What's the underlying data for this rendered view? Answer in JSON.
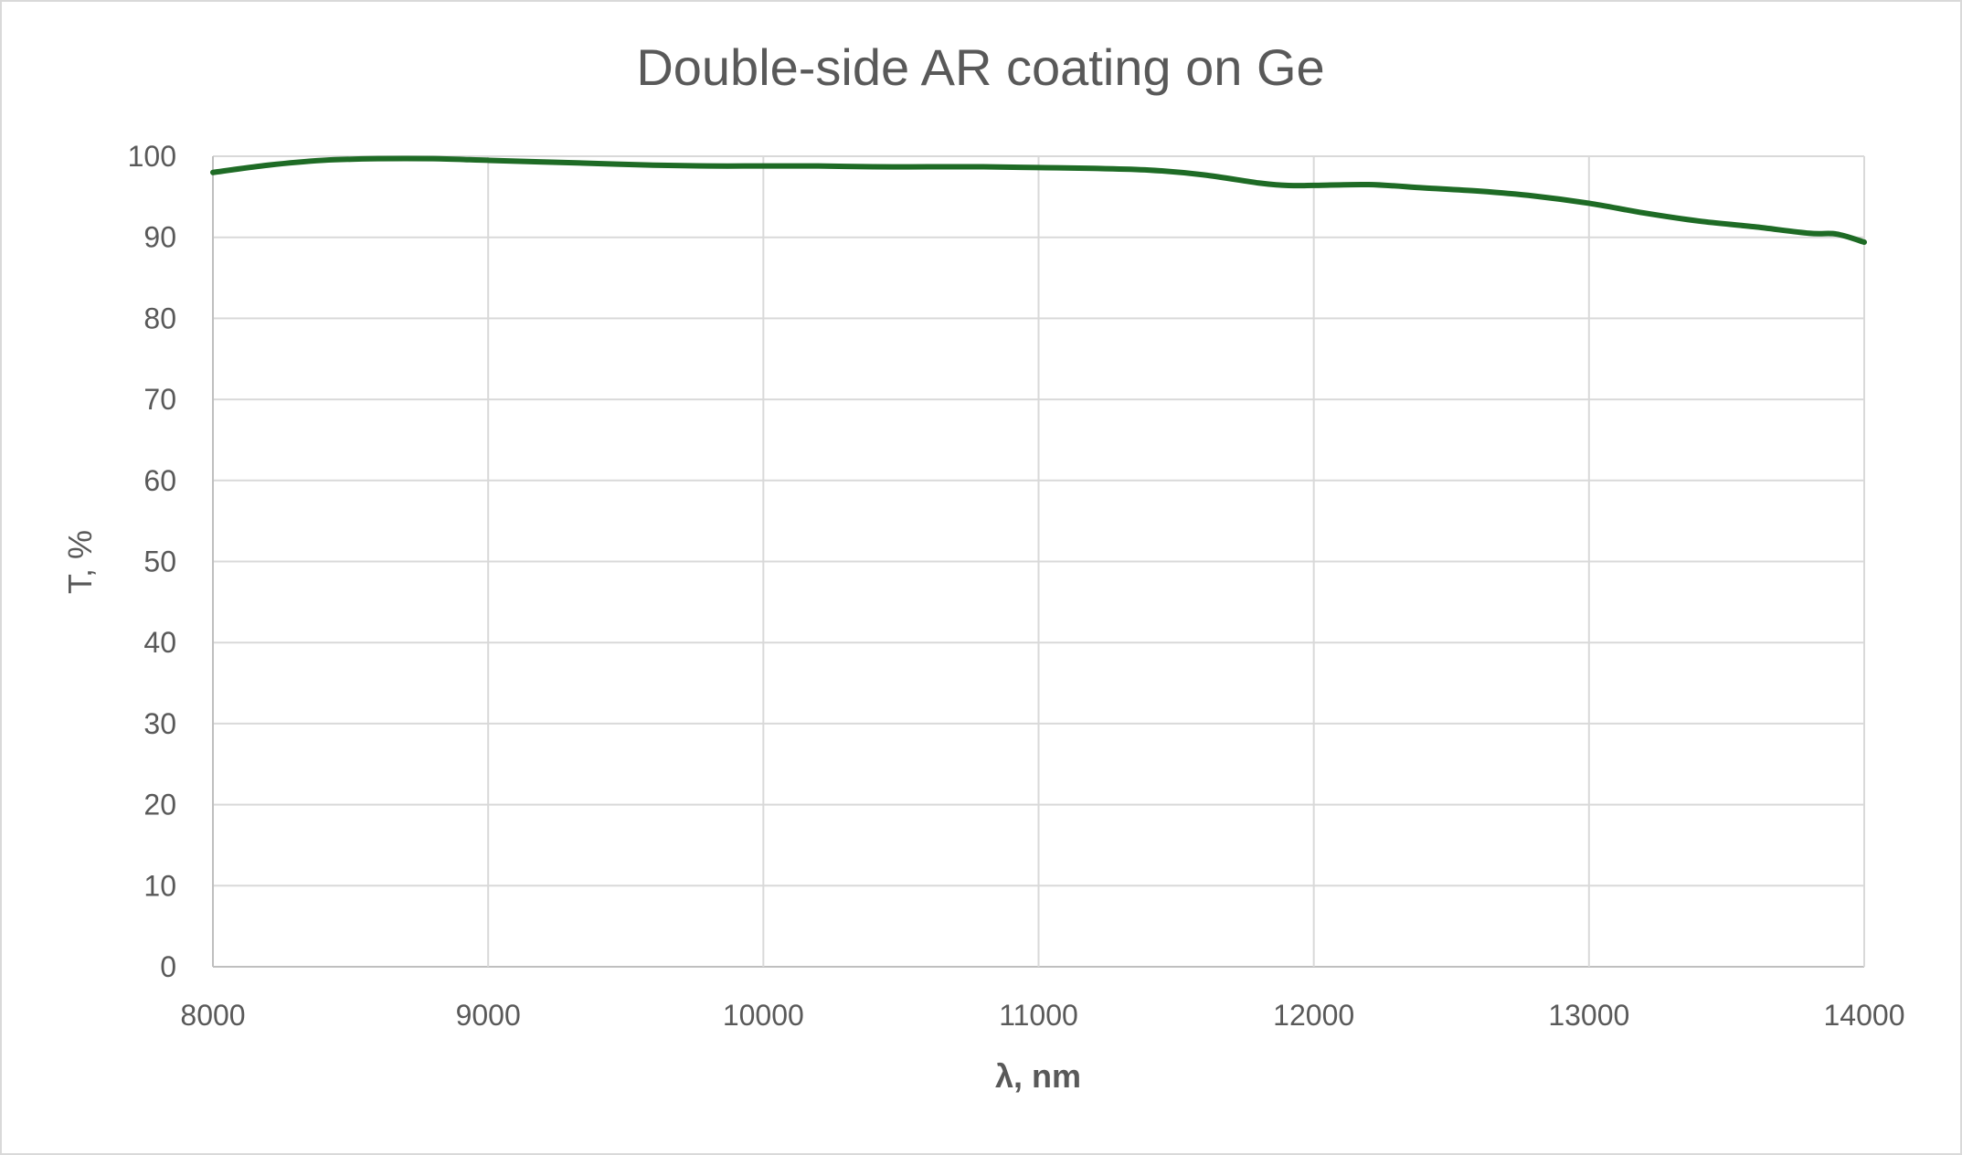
{
  "chart_data": {
    "type": "line",
    "title": "Double-side AR coating on Ge",
    "xlabel": "λ, nm",
    "ylabel": "T, %",
    "xlim": [
      8000,
      14000
    ],
    "ylim": [
      0,
      100
    ],
    "x_ticks": [
      8000,
      9000,
      10000,
      11000,
      12000,
      13000,
      14000
    ],
    "y_ticks": [
      0,
      10,
      20,
      30,
      40,
      50,
      60,
      70,
      80,
      90,
      100
    ],
    "grid": true,
    "legend": "none",
    "series": [
      {
        "name": "T",
        "color": "#1e6b25",
        "x": [
          8000,
          8200,
          8400,
          8600,
          8800,
          9000,
          9200,
          9400,
          9600,
          9800,
          10000,
          10200,
          10400,
          10600,
          10800,
          11000,
          11200,
          11400,
          11600,
          11800,
          11900,
          12000,
          12200,
          12400,
          12600,
          12800,
          13000,
          13200,
          13400,
          13600,
          13800,
          13900,
          14000
        ],
        "values": [
          98.0,
          98.9,
          99.5,
          99.7,
          99.7,
          99.5,
          99.3,
          99.1,
          98.9,
          98.8,
          98.8,
          98.8,
          98.7,
          98.7,
          98.7,
          98.6,
          98.5,
          98.3,
          97.7,
          96.7,
          96.4,
          96.4,
          96.5,
          96.1,
          95.7,
          95.1,
          94.2,
          93.0,
          92.0,
          91.3,
          90.5,
          90.4,
          89.4
        ]
      }
    ]
  }
}
